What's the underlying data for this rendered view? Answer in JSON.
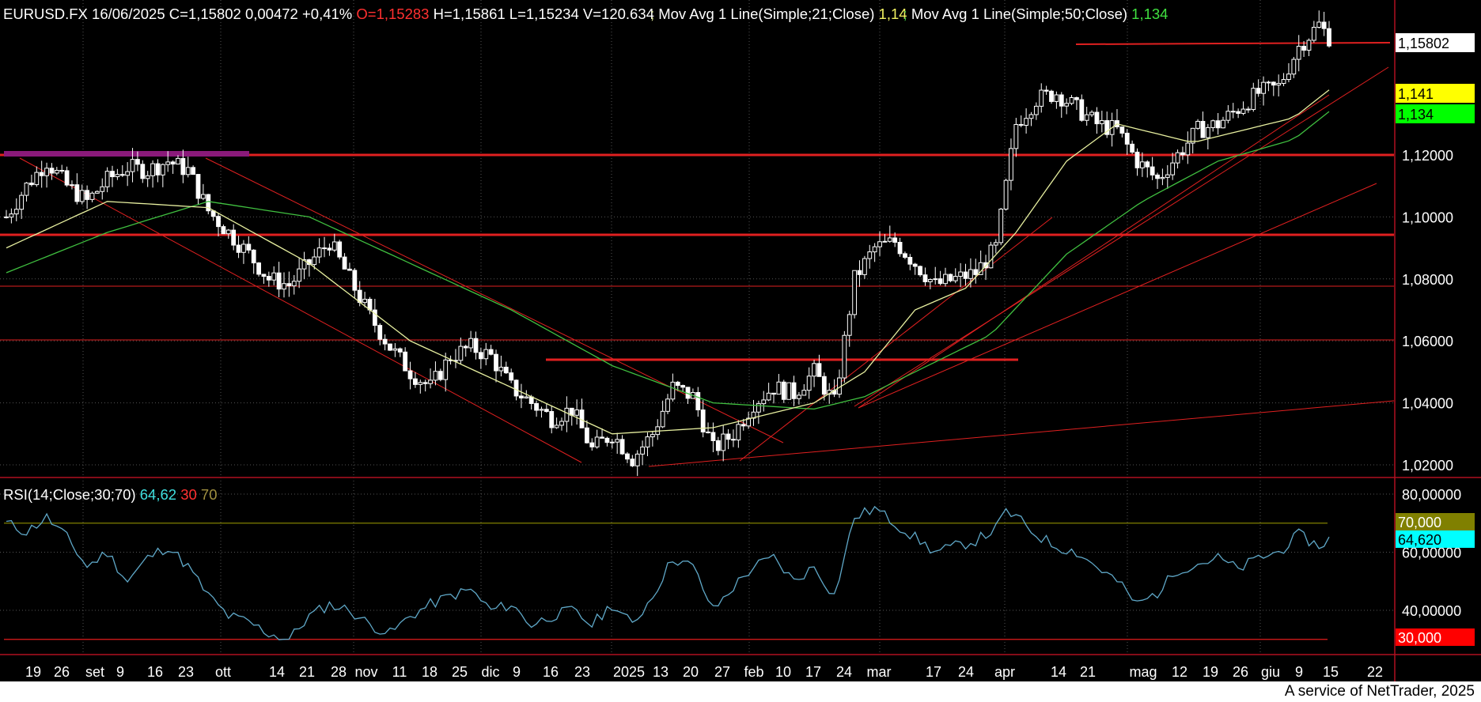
{
  "header": {
    "symbol": "EURUSD.FX",
    "date": "16/06/2025",
    "close": "C=1,15802",
    "change": "0,00472",
    "change_pct": "+0,41%",
    "open": "O=1,15283",
    "high": "H=1,15861",
    "low": "L=1,15234",
    "volume": "V=120.634",
    "ma21_label": "Mov Avg 1 Line(Simple;21;Close)",
    "ma21_value": "1,14",
    "ma50_label": "Mov Avg 1 Line(Simple;50;Close)",
    "ma50_value": "1,134",
    "sep": ";"
  },
  "rsi_header": {
    "label": "RSI(14;Close;30;70)",
    "value": "64,62",
    "low": "30",
    "high": "70"
  },
  "footer": {
    "text": "A service of NetTrader, 2025"
  },
  "colors": {
    "background": "#000000",
    "candle_up": "#ffffff",
    "candle_down": "#ffffff",
    "ma21": "#e8f0a0",
    "ma50": "#40c040",
    "trendline": "#e02020",
    "rsi_line": "#5fa8c8",
    "grid": "#555555",
    "overbought": "#808000",
    "rsi_badge": "#00ffff",
    "oversold_badge": "#ff0000"
  },
  "chart_data": [
    {
      "type": "candlestick",
      "title": "EURUSD.FX",
      "y_ticks": [
        "1,02000",
        "1,04000",
        "1,06000",
        "1,08000",
        "1,10000",
        "1,12000"
      ],
      "ylim": [
        1.0125,
        1.1725
      ],
      "last_price": "1,15802",
      "ma21_badge": "1,141",
      "ma50_badge": "1,134",
      "x_ticks": [
        "19",
        "26",
        "set",
        "9",
        "16",
        "23",
        "ott",
        "14",
        "21",
        "28",
        "nov",
        "11",
        "18",
        "25",
        "dic",
        "9",
        "16",
        "23",
        "2025",
        "13",
        "20",
        "27",
        "feb",
        "10",
        "17",
        "24",
        "mar",
        "17",
        "24",
        "apr",
        "14",
        "21",
        "mag",
        "12",
        "19",
        "26",
        "giu",
        "9",
        "15",
        "22"
      ],
      "price_path": [
        [
          0,
          1.1
        ],
        [
          4,
          1.11
        ],
        [
          8,
          1.118
        ],
        [
          12,
          1.11
        ],
        [
          16,
          1.105
        ],
        [
          20,
          1.112
        ],
        [
          24,
          1.116
        ],
        [
          28,
          1.115
        ],
        [
          32,
          1.118
        ],
        [
          36,
          1.115
        ],
        [
          40,
          1.102
        ],
        [
          44,
          1.095
        ],
        [
          48,
          1.088
        ],
        [
          52,
          1.08
        ],
        [
          56,
          1.078
        ],
        [
          60,
          1.085
        ],
        [
          64,
          1.092
        ],
        [
          68,
          1.08
        ],
        [
          72,
          1.068
        ],
        [
          76,
          1.058
        ],
        [
          80,
          1.05
        ],
        [
          84,
          1.045
        ],
        [
          88,
          1.055
        ],
        [
          92,
          1.058
        ],
        [
          96,
          1.055
        ],
        [
          100,
          1.045
        ],
        [
          104,
          1.04
        ],
        [
          108,
          1.035
        ],
        [
          112,
          1.038
        ],
        [
          116,
          1.025
        ],
        [
          120,
          1.03
        ],
        [
          124,
          1.022
        ],
        [
          128,
          1.03
        ],
        [
          132,
          1.045
        ],
        [
          136,
          1.042
        ],
        [
          140,
          1.025
        ],
        [
          144,
          1.03
        ],
        [
          148,
          1.04
        ],
        [
          152,
          1.045
        ],
        [
          156,
          1.043
        ],
        [
          160,
          1.05
        ],
        [
          164,
          1.04
        ],
        [
          168,
          1.08
        ],
        [
          172,
          1.09
        ],
        [
          176,
          1.092
        ],
        [
          180,
          1.085
        ],
        [
          184,
          1.078
        ],
        [
          188,
          1.08
        ],
        [
          192,
          1.082
        ],
        [
          196,
          1.09
        ],
        [
          198,
          1.11
        ],
        [
          200,
          1.13
        ],
        [
          204,
          1.138
        ],
        [
          208,
          1.14
        ],
        [
          212,
          1.135
        ],
        [
          216,
          1.13
        ],
        [
          220,
          1.128
        ],
        [
          224,
          1.118
        ],
        [
          228,
          1.112
        ],
        [
          232,
          1.12
        ],
        [
          236,
          1.128
        ],
        [
          240,
          1.13
        ],
        [
          244,
          1.135
        ],
        [
          248,
          1.14
        ],
        [
          252,
          1.142
        ],
        [
          256,
          1.155
        ],
        [
          260,
          1.162
        ],
        [
          262,
          1.158
        ]
      ],
      "ma21_path": [
        [
          0,
          1.09
        ],
        [
          20,
          1.105
        ],
        [
          40,
          1.103
        ],
        [
          60,
          1.085
        ],
        [
          80,
          1.06
        ],
        [
          100,
          1.045
        ],
        [
          120,
          1.03
        ],
        [
          140,
          1.032
        ],
        [
          160,
          1.04
        ],
        [
          170,
          1.05
        ],
        [
          180,
          1.07
        ],
        [
          190,
          1.077
        ],
        [
          200,
          1.095
        ],
        [
          210,
          1.118
        ],
        [
          220,
          1.13
        ],
        [
          235,
          1.124
        ],
        [
          245,
          1.128
        ],
        [
          255,
          1.132
        ],
        [
          262,
          1.141
        ]
      ],
      "ma50_path": [
        [
          0,
          1.082
        ],
        [
          20,
          1.095
        ],
        [
          40,
          1.105
        ],
        [
          60,
          1.1
        ],
        [
          80,
          1.085
        ],
        [
          100,
          1.07
        ],
        [
          120,
          1.052
        ],
        [
          140,
          1.04
        ],
        [
          160,
          1.038
        ],
        [
          170,
          1.042
        ],
        [
          180,
          1.05
        ],
        [
          195,
          1.062
        ],
        [
          210,
          1.088
        ],
        [
          225,
          1.105
        ],
        [
          240,
          1.118
        ],
        [
          255,
          1.125
        ],
        [
          262,
          1.134
        ]
      ]
    },
    {
      "type": "line",
      "title": "RSI(14;Close;30;70)",
      "y_ticks": [
        "40,00000",
        "60,00000",
        "80,00000"
      ],
      "ylim": [
        25,
        85
      ],
      "levels": {
        "overbought": 70,
        "oversold": 30
      },
      "badges": {
        "overbought": "70,000",
        "value": "64,620",
        "oversold": "30,000"
      },
      "rsi_path": [
        [
          0,
          70
        ],
        [
          4,
          67
        ],
        [
          8,
          72
        ],
        [
          12,
          65
        ],
        [
          16,
          55
        ],
        [
          20,
          60
        ],
        [
          24,
          50
        ],
        [
          28,
          58
        ],
        [
          32,
          62
        ],
        [
          36,
          55
        ],
        [
          40,
          45
        ],
        [
          44,
          38
        ],
        [
          48,
          36
        ],
        [
          52,
          32
        ],
        [
          56,
          30
        ],
        [
          60,
          38
        ],
        [
          64,
          42
        ],
        [
          68,
          40
        ],
        [
          72,
          35
        ],
        [
          76,
          32
        ],
        [
          80,
          38
        ],
        [
          84,
          42
        ],
        [
          88,
          45
        ],
        [
          92,
          47
        ],
        [
          96,
          40
        ],
        [
          100,
          42
        ],
        [
          104,
          35
        ],
        [
          108,
          38
        ],
        [
          112,
          40
        ],
        [
          116,
          35
        ],
        [
          120,
          42
        ],
        [
          124,
          35
        ],
        [
          128,
          45
        ],
        [
          132,
          58
        ],
        [
          136,
          55
        ],
        [
          140,
          40
        ],
        [
          144,
          48
        ],
        [
          148,
          55
        ],
        [
          152,
          58
        ],
        [
          156,
          50
        ],
        [
          160,
          55
        ],
        [
          164,
          45
        ],
        [
          168,
          72
        ],
        [
          172,
          75
        ],
        [
          176,
          70
        ],
        [
          180,
          65
        ],
        [
          184,
          60
        ],
        [
          188,
          62
        ],
        [
          192,
          64
        ],
        [
          196,
          68
        ],
        [
          198,
          74
        ],
        [
          200,
          72
        ],
        [
          204,
          66
        ],
        [
          208,
          62
        ],
        [
          212,
          60
        ],
        [
          216,
          55
        ],
        [
          220,
          50
        ],
        [
          224,
          42
        ],
        [
          228,
          46
        ],
        [
          232,
          54
        ],
        [
          236,
          56
        ],
        [
          240,
          58
        ],
        [
          244,
          54
        ],
        [
          248,
          58
        ],
        [
          252,
          60
        ],
        [
          256,
          66
        ],
        [
          260,
          62
        ],
        [
          262,
          64.6
        ]
      ]
    }
  ]
}
